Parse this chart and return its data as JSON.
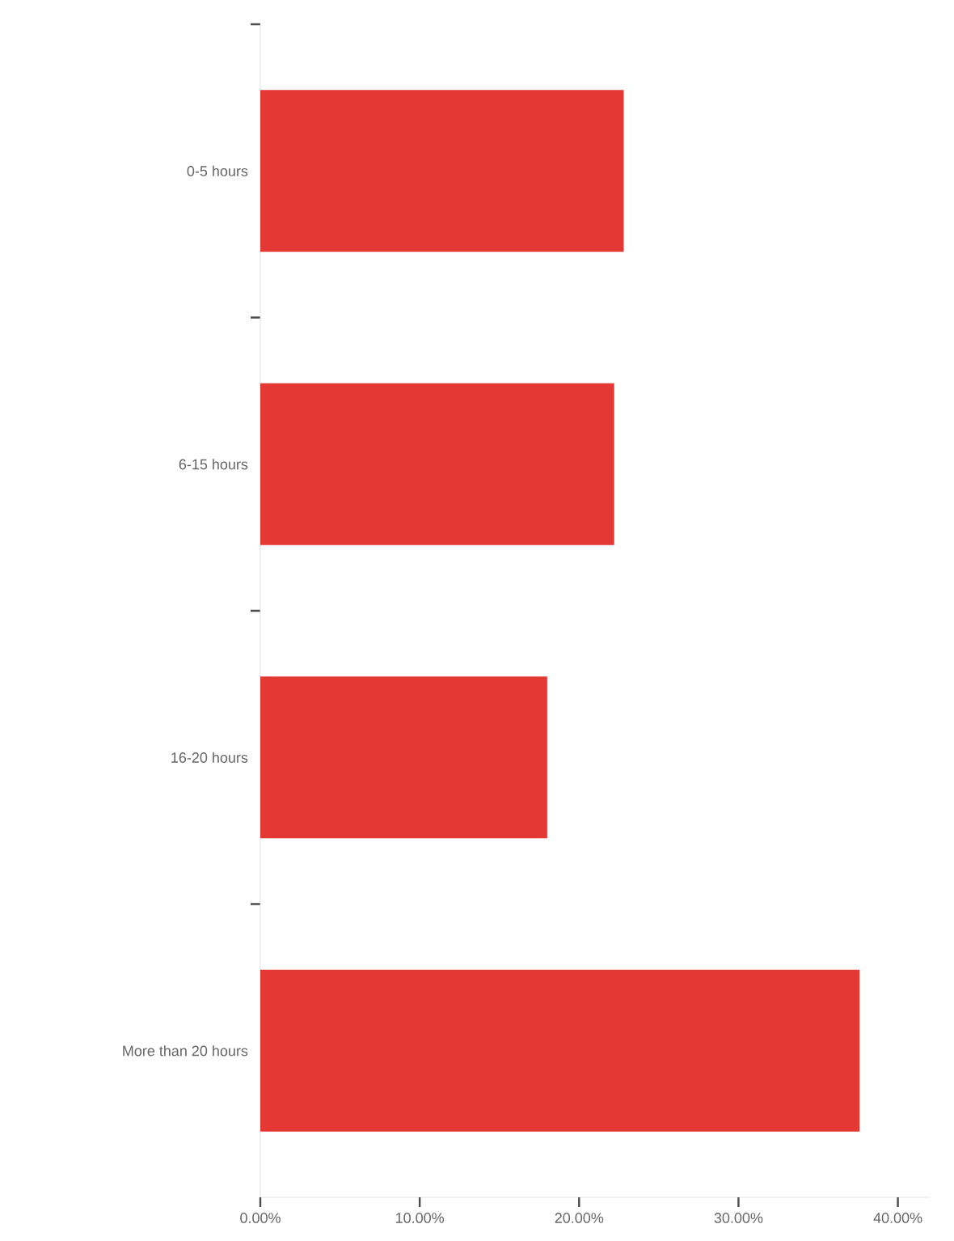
{
  "chart_data": {
    "type": "bar",
    "orientation": "horizontal",
    "categories": [
      "0-5 hours",
      "6-15 hours",
      "16-20 hours",
      "More than 20 hours"
    ],
    "values": [
      22.8,
      22.2,
      18.0,
      37.6
    ],
    "color": "#e43834",
    "xlim": [
      0,
      42
    ],
    "xticks": [
      {
        "value": 0,
        "label": "0.00%"
      },
      {
        "value": 10,
        "label": "10.00%"
      },
      {
        "value": 20,
        "label": "20.00%"
      },
      {
        "value": 30,
        "label": "30.00%"
      },
      {
        "value": 40,
        "label": "40.00%"
      }
    ],
    "grid": false
  }
}
